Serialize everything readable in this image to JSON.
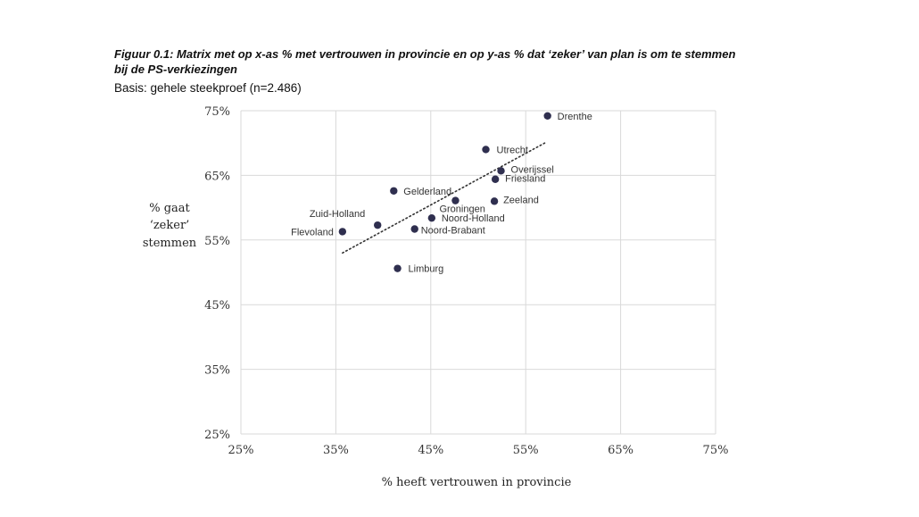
{
  "figure": {
    "title": "Figuur 0.1: Matrix met op x-as % met vertrouwen in provincie en op y-as % dat ‘zeker’ van plan is om te stemmen bij de PS-verkiezingen",
    "subtitle": "Basis: gehele steekproef (n=2.486)"
  },
  "chart_data": {
    "type": "scatter",
    "xlabel": "% heeft vertrouwen in provincie",
    "ylabel_lines": [
      "% gaat",
      "‘zeker’",
      "stemmen"
    ],
    "xlim": [
      25,
      75
    ],
    "ylim": [
      25,
      75
    ],
    "xticks": [
      25,
      35,
      45,
      55,
      65,
      75
    ],
    "yticks": [
      25,
      35,
      45,
      55,
      65,
      75
    ],
    "xtick_labels": [
      "25%",
      "35%",
      "45%",
      "55%",
      "65%",
      "75%"
    ],
    "ytick_labels": [
      "25%",
      "35%",
      "45%",
      "55%",
      "65%",
      "75%"
    ],
    "grid": true,
    "point_color": "#2f2f4f",
    "trendline": {
      "style": "dotted",
      "from": [
        35.7,
        53.0
      ],
      "to": [
        57.0,
        70.0
      ]
    },
    "points": [
      {
        "label": "Drenthe",
        "x": 57.3,
        "y": 74.2
      },
      {
        "label": "Utrecht",
        "x": 50.8,
        "y": 69.0
      },
      {
        "label": "Overijssel",
        "x": 52.4,
        "y": 65.7
      },
      {
        "label": "Friesland",
        "x": 51.8,
        "y": 64.4
      },
      {
        "label": "Gelderland",
        "x": 41.1,
        "y": 62.6
      },
      {
        "label": "Groningen",
        "x": 47.6,
        "y": 61.1
      },
      {
        "label": "Zeeland",
        "x": 51.7,
        "y": 61.0
      },
      {
        "label": "Noord-Holland",
        "x": 45.1,
        "y": 58.4
      },
      {
        "label": "Zuid-Holland",
        "x": 39.4,
        "y": 57.3
      },
      {
        "label": "Noord-Brabant",
        "x": 43.3,
        "y": 56.7
      },
      {
        "label": "Flevoland",
        "x": 35.7,
        "y": 56.3
      },
      {
        "label": "Limburg",
        "x": 41.5,
        "y": 50.6
      }
    ]
  }
}
